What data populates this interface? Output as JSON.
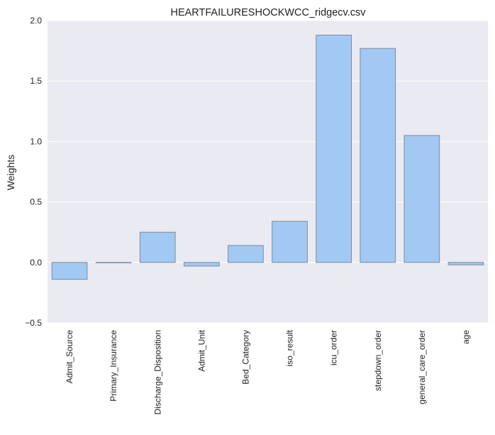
{
  "chart_data": {
    "type": "bar",
    "title": "HEARTFAILURESHOCKWCC_ridgecv.csv",
    "xlabel": "",
    "ylabel": "Weights",
    "categories": [
      "Admit_Source",
      "Primary_Insurance",
      "Discharge_Disposition",
      "Admit_Unit",
      "Bed_Category",
      "iso_result",
      "icu_order",
      "stepdown_order",
      "general_care_order",
      "age"
    ],
    "values": [
      -0.14,
      0.0,
      0.25,
      -0.03,
      0.14,
      0.34,
      1.88,
      1.77,
      1.05,
      -0.02
    ],
    "ylim": [
      -0.5,
      2.0
    ],
    "yticks": [
      "−0.5",
      "0.0",
      "0.5",
      "1.0",
      "1.5",
      "2.0"
    ],
    "grid": true,
    "colors": {
      "background": "#eaeaf2",
      "grid": "#ffffff",
      "bar_fill": "#a1c9f4",
      "bar_stroke": "#7f8a98"
    }
  }
}
